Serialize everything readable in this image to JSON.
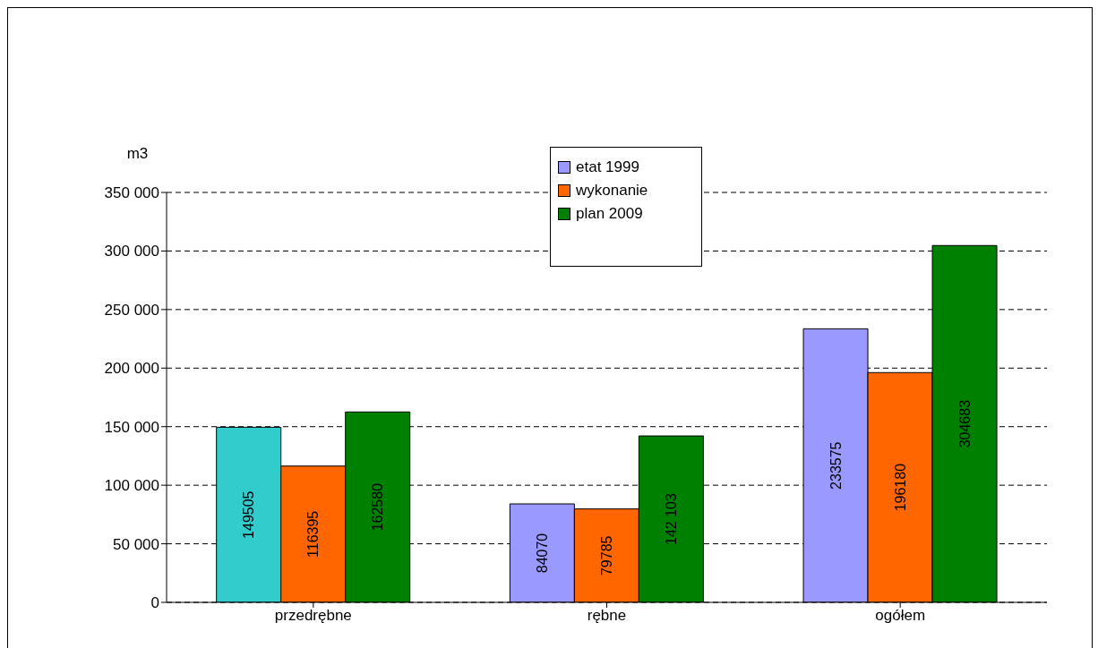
{
  "chart_data": {
    "type": "bar",
    "ylabel": "m3",
    "categories": [
      "przedrębne",
      "rębne",
      "ogółem"
    ],
    "series": [
      {
        "name": "etat 1999",
        "color": "#9999ff",
        "colors": [
          "#33cccc",
          "#9999ff",
          "#9999ff"
        ],
        "values": [
          149505,
          84070,
          233575
        ],
        "value_labels": [
          "149505",
          "84070",
          "233575"
        ]
      },
      {
        "name": "wykonanie",
        "color": "#ff6600",
        "values": [
          116395,
          79785,
          196180
        ],
        "value_labels": [
          "116395",
          "79785",
          "196180"
        ]
      },
      {
        "name": "plan 2009",
        "color": "#008000",
        "values": [
          162580,
          142103,
          304683
        ],
        "value_labels": [
          "162580",
          "142 103",
          "304683"
        ]
      }
    ],
    "ylim": [
      0,
      350000
    ],
    "yticks": [
      {
        "value": 0,
        "label": "0"
      },
      {
        "value": 50000,
        "label": "50 000"
      },
      {
        "value": 100000,
        "label": "100 000"
      },
      {
        "value": 150000,
        "label": "150 000"
      },
      {
        "value": 200000,
        "label": "200 000"
      },
      {
        "value": 250000,
        "label": "250 000"
      },
      {
        "value": 300000,
        "label": "300 000"
      },
      {
        "value": 350000,
        "label": "350 000"
      }
    ],
    "grid": "y",
    "legend": "top"
  }
}
